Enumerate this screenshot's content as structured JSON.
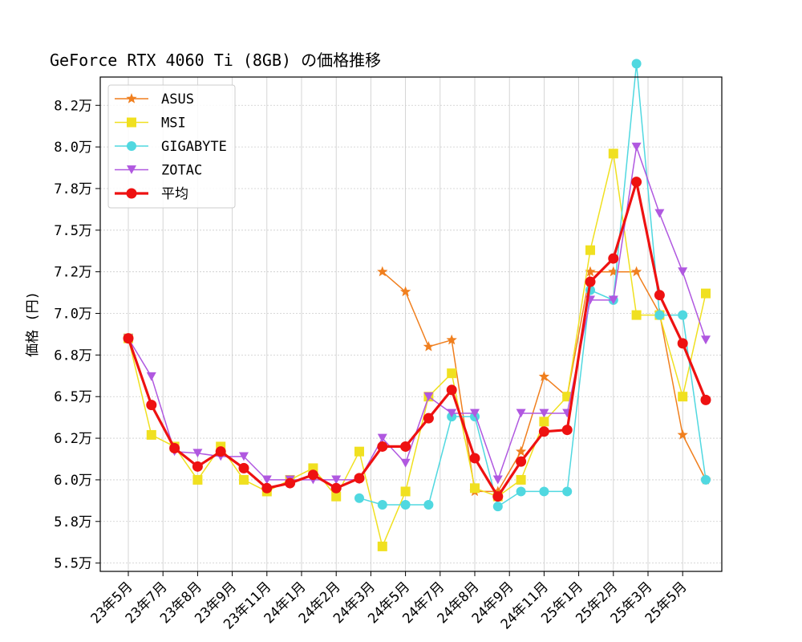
{
  "chart_data": {
    "type": "line",
    "title": "GeForce RTX 4060 Ti (8GB) の価格推移",
    "xlabel": "",
    "ylabel": "価格 (円)",
    "ylim": [
      5.45,
      8.42
    ],
    "yticks": [
      "5.5万",
      "5.8万",
      "6.0万",
      "6.2万",
      "6.5万",
      "6.8万",
      "7.0万",
      "7.2万",
      "7.5万",
      "7.8万",
      "8.0万",
      "8.2万"
    ],
    "xtick_labels": [
      "23年5月",
      "23年7月",
      "23年8月",
      "23年9月",
      "23年11月",
      "24年1月",
      "24年2月",
      "24年3月",
      "24年5月",
      "24年7月",
      "24年8月",
      "24年9月",
      "24年11月",
      "25年1月",
      "25年2月",
      "25年3月",
      "25年5月"
    ],
    "grid": true,
    "legend_position": "top-left",
    "series": [
      {
        "name": "ASUS",
        "color": "#f07f1e",
        "marker": "star",
        "values": [
          6.85,
          null,
          null,
          null,
          null,
          null,
          null,
          null,
          null,
          null,
          null,
          7.25,
          7.13,
          6.8,
          6.84,
          5.93,
          5.93,
          6.17,
          6.62,
          6.5,
          7.25,
          7.25,
          7.25,
          7.0,
          6.27,
          6.0
        ]
      },
      {
        "name": "MSI",
        "color": "#f0e020",
        "marker": "square",
        "values": [
          6.85,
          6.27,
          6.2,
          6.0,
          6.2,
          6.0,
          5.93,
          6.0,
          6.07,
          5.9,
          6.17,
          5.6,
          5.93,
          6.5,
          6.64,
          5.95,
          5.9,
          6.0,
          6.35,
          6.5,
          7.38,
          7.96,
          6.99,
          6.99,
          6.5,
          7.12
        ]
      },
      {
        "name": "GIGABYTE",
        "color": "#50d8e0",
        "marker": "circle",
        "values": [
          null,
          null,
          null,
          null,
          null,
          null,
          null,
          null,
          null,
          null,
          5.89,
          5.85,
          5.85,
          5.85,
          6.38,
          6.38,
          5.84,
          5.93,
          5.93,
          5.93,
          7.14,
          7.08,
          8.5,
          6.99,
          6.99,
          6.0
        ]
      },
      {
        "name": "ZOTAC",
        "color": "#b058e0",
        "marker": "triangle-down",
        "values": [
          6.85,
          6.62,
          6.17,
          6.16,
          6.14,
          6.14,
          6.0,
          6.0,
          6.0,
          6.0,
          6.0,
          6.25,
          6.1,
          6.5,
          6.4,
          6.4,
          6.0,
          6.4,
          6.4,
          6.4,
          7.08,
          7.08,
          8.0,
          7.6,
          7.25,
          6.84
        ]
      },
      {
        "name": "平均",
        "color": "#ee1111",
        "marker": "circle",
        "values": [
          6.85,
          6.45,
          6.19,
          6.08,
          6.17,
          6.07,
          5.95,
          5.98,
          6.03,
          5.95,
          6.01,
          6.2,
          6.2,
          6.37,
          6.54,
          6.13,
          5.9,
          6.11,
          6.29,
          6.3,
          7.19,
          7.33,
          7.79,
          7.11,
          6.82,
          6.48
        ]
      }
    ]
  }
}
